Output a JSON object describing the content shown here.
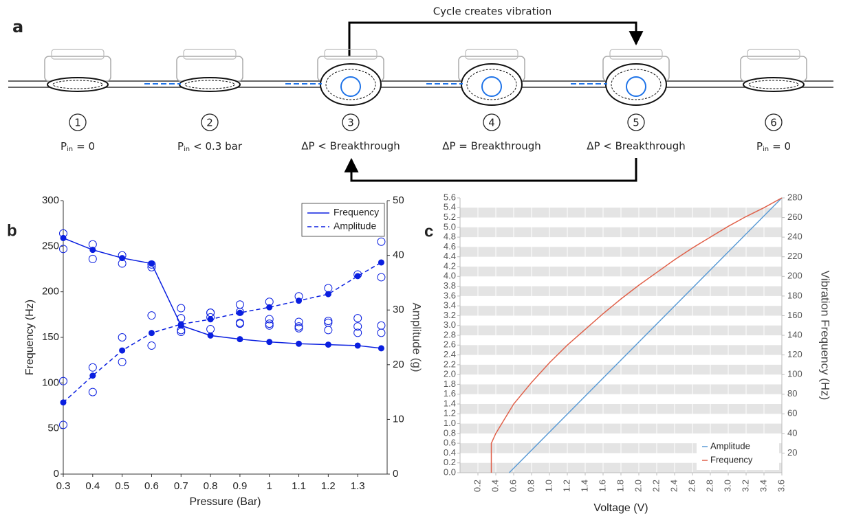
{
  "diagram": {
    "panel_label": "a",
    "cycle_label": "Cycle creates vibration",
    "steps": [
      {
        "number": "1",
        "caption": {
          "symbol": "P",
          "subscript": "in",
          "rest": "= 0"
        }
      },
      {
        "number": "2",
        "caption": {
          "symbol": "P",
          "subscript": "in",
          "rest": "< 0.3 bar"
        }
      },
      {
        "number": "3",
        "caption": {
          "text": "ΔP < Breakthrough"
        }
      },
      {
        "number": "4",
        "caption": {
          "text": "ΔP = Breakthrough"
        }
      },
      {
        "number": "5",
        "caption": {
          "text": "ΔP < Breakthrough"
        }
      },
      {
        "number": "6",
        "caption": {
          "symbol": "P",
          "subscript": "in",
          "rest": "= 0"
        }
      }
    ]
  },
  "chart_data": [
    {
      "type": "line",
      "panel_label": "b",
      "xlabel": "Pressure (Bar)",
      "ylabel": "Frequency (Hz)",
      "y2label": "Amplitude (g)",
      "x": [
        0.3,
        0.4,
        0.5,
        0.6,
        0.7,
        0.8,
        0.9,
        1,
        1.1,
        1.2,
        1.3,
        1.38
      ],
      "xlim": [
        0.3,
        1.4
      ],
      "xticks": [
        0.3,
        0.4,
        0.5,
        0.6,
        0.7,
        0.8,
        0.9,
        1,
        1.1,
        1.2,
        1.3
      ],
      "ylim": [
        0,
        300
      ],
      "yticks": [
        0,
        50,
        100,
        150,
        200,
        250,
        300
      ],
      "y2lim": [
        0,
        50
      ],
      "y2ticks": [
        0,
        10,
        20,
        30,
        40,
        50
      ],
      "grid": false,
      "legend": "upper right",
      "series": [
        {
          "name": "Frequency",
          "color": "#0a1fe0",
          "line_style": "solid",
          "marker": "filled-circle",
          "values": [
            259,
            246,
            237,
            231,
            163,
            152,
            148,
            145,
            143,
            142,
            141,
            138
          ],
          "replicates": [
            [
              264,
              247
            ],
            [
              252,
              236
            ],
            [
              240,
              231
            ],
            [
              230,
              227
            ],
            [
              182,
              158
            ],
            [
              177,
              172
            ],
            [
              178,
              166
            ],
            [
              170,
              163
            ],
            [
              167,
              160
            ],
            [
              166,
              158
            ],
            [
              162,
              155
            ],
            [
              163,
              155
            ]
          ]
        },
        {
          "name": "Amplitude",
          "color": "#0a1fe0",
          "line_style": "dashed",
          "marker": "filled-circle",
          "axis": "y2",
          "values": [
            13.1,
            18,
            22.6,
            25.8,
            27.4,
            28.3,
            29.5,
            30.5,
            31.7,
            32.9,
            36.2,
            38.7
          ],
          "replicates": [
            [
              17,
              9
            ],
            [
              19.5,
              15
            ],
            [
              25,
              20.5
            ],
            [
              29,
              23.5
            ],
            [
              28.5,
              26
            ],
            [
              29.5,
              26.5
            ],
            [
              31,
              27.5
            ],
            [
              31.5,
              27.5
            ],
            [
              32.5,
              27
            ],
            [
              34,
              28
            ],
            [
              36.5,
              28.5
            ],
            [
              42.5,
              36
            ]
          ]
        }
      ]
    },
    {
      "type": "line",
      "panel_label": "c",
      "xlabel": "Voltage (V)",
      "y2label": "Vibration Frequency (Hz)",
      "xlim": [
        0,
        3.6
      ],
      "xticks": [
        0.2,
        0.4,
        0.6,
        0.8,
        {
          "value": 1,
          "label": "1.0"
        },
        1.2,
        1.4,
        1.6,
        1.8,
        {
          "value": 2,
          "label": "2.0"
        },
        2.2,
        2.4,
        2.6,
        2.8,
        {
          "value": 3,
          "label": "3.0"
        },
        3.2,
        3.4,
        3.6
      ],
      "ylim": [
        0,
        5.6
      ],
      "yticks": [
        {
          "value": 0,
          "label": "0.0"
        },
        0.2,
        0.4,
        0.6,
        0.8,
        {
          "value": 1,
          "label": "1.0"
        },
        1.2,
        1.4,
        1.6,
        1.8,
        {
          "value": 2,
          "label": "2.0"
        },
        2.2,
        2.4,
        2.6,
        2.8,
        {
          "value": 3,
          "label": "3.0"
        },
        3.2,
        3.4,
        3.6,
        3.8,
        {
          "value": 4,
          "label": "4.0"
        },
        4.2,
        4.4,
        4.6,
        4.8,
        {
          "value": 5,
          "label": "5.0"
        },
        5.2,
        5.4,
        5.6
      ],
      "y2lim": [
        0,
        280
      ],
      "y2ticks": [
        20,
        40,
        60,
        80,
        100,
        120,
        140,
        160,
        180,
        200,
        220,
        240,
        260,
        280
      ],
      "grid": "bands",
      "legend": "lower right",
      "series": [
        {
          "name": "Amplitude",
          "color": "#5b9bd5",
          "x": [
            0.55,
            3.6
          ],
          "values": [
            0,
            5.6
          ]
        },
        {
          "name": "Frequency",
          "color": "#e0614a",
          "axis": "y2",
          "x": [
            0.35,
            0.35,
            0.4,
            0.6,
            0.8,
            1,
            1.2,
            1.4,
            1.6,
            1.8,
            2,
            2.2,
            2.4,
            2.6,
            2.8,
            3,
            3.2,
            3.4,
            3.6
          ],
          "values": [
            0,
            30,
            40,
            70,
            92,
            112,
            130,
            146,
            162,
            177,
            191,
            204,
            217,
            229,
            240,
            251,
            261,
            270,
            280
          ]
        }
      ]
    }
  ]
}
